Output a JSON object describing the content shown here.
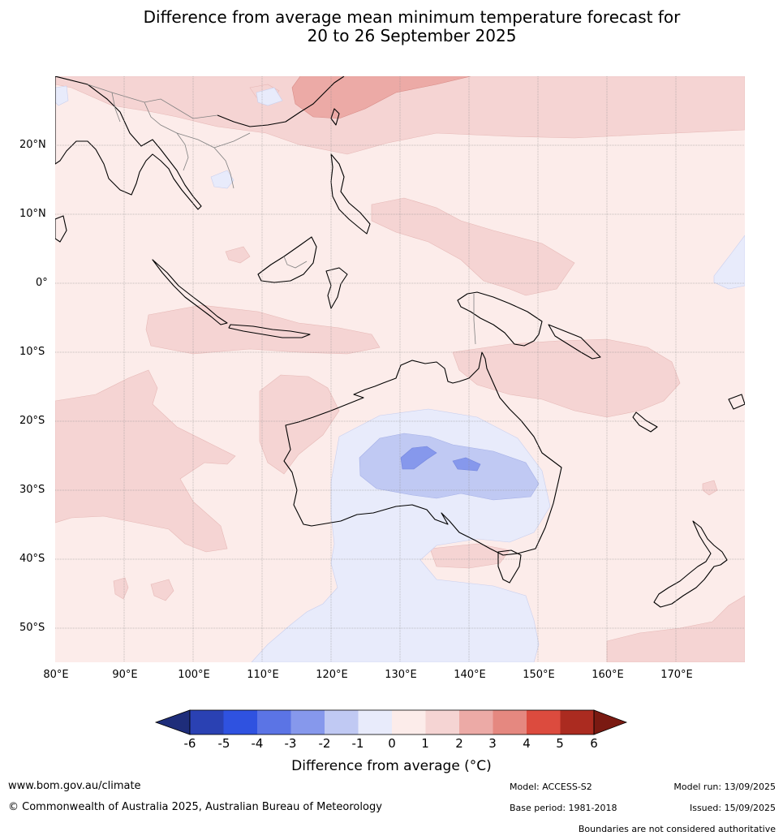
{
  "title": {
    "line1": "Difference from average mean minimum temperature forecast for",
    "line2": "20 to 26 September 2025"
  },
  "map": {
    "lat_labels": [
      "20°N",
      "10°N",
      "0°",
      "10°S",
      "20°S",
      "30°S",
      "40°S",
      "50°S"
    ],
    "lon_labels": [
      "80°E",
      "90°E",
      "100°E",
      "110°E",
      "120°E",
      "130°E",
      "140°E",
      "150°E",
      "160°E",
      "170°E"
    ],
    "colors": {
      "land_border": "#000000",
      "country_border": "#808080",
      "grid": "#8c8c8c"
    }
  },
  "colorbar": {
    "label": "Difference from average (°C)",
    "ticks": [
      "-6",
      "-5",
      "-4",
      "-3",
      "-2",
      "-1",
      "0",
      "1",
      "2",
      "3",
      "4",
      "5",
      "6"
    ],
    "colors": [
      "#1e2d7a",
      "#2a41b3",
      "#2f52e0",
      "#5b74e5",
      "#8698ec",
      "#c0c9f3",
      "#e8ebfb",
      "#fcecea",
      "#f5d4d3",
      "#ecaaa6",
      "#e58880",
      "#dc4b3e",
      "#ab2b20",
      "#7a1a12"
    ]
  },
  "footer": {
    "website": "www.bom.gov.au/climate",
    "copyright": "© Commonwealth of Australia 2025, Australian Bureau of Meteorology",
    "model": "Model: ACCESS-S2",
    "base_period": "Base period: 1981-2018",
    "model_run": "Model run: 13/09/2025",
    "issued": "Issued: 15/09/2025",
    "disclaimer": "Boundaries are not considered authoritative"
  }
}
